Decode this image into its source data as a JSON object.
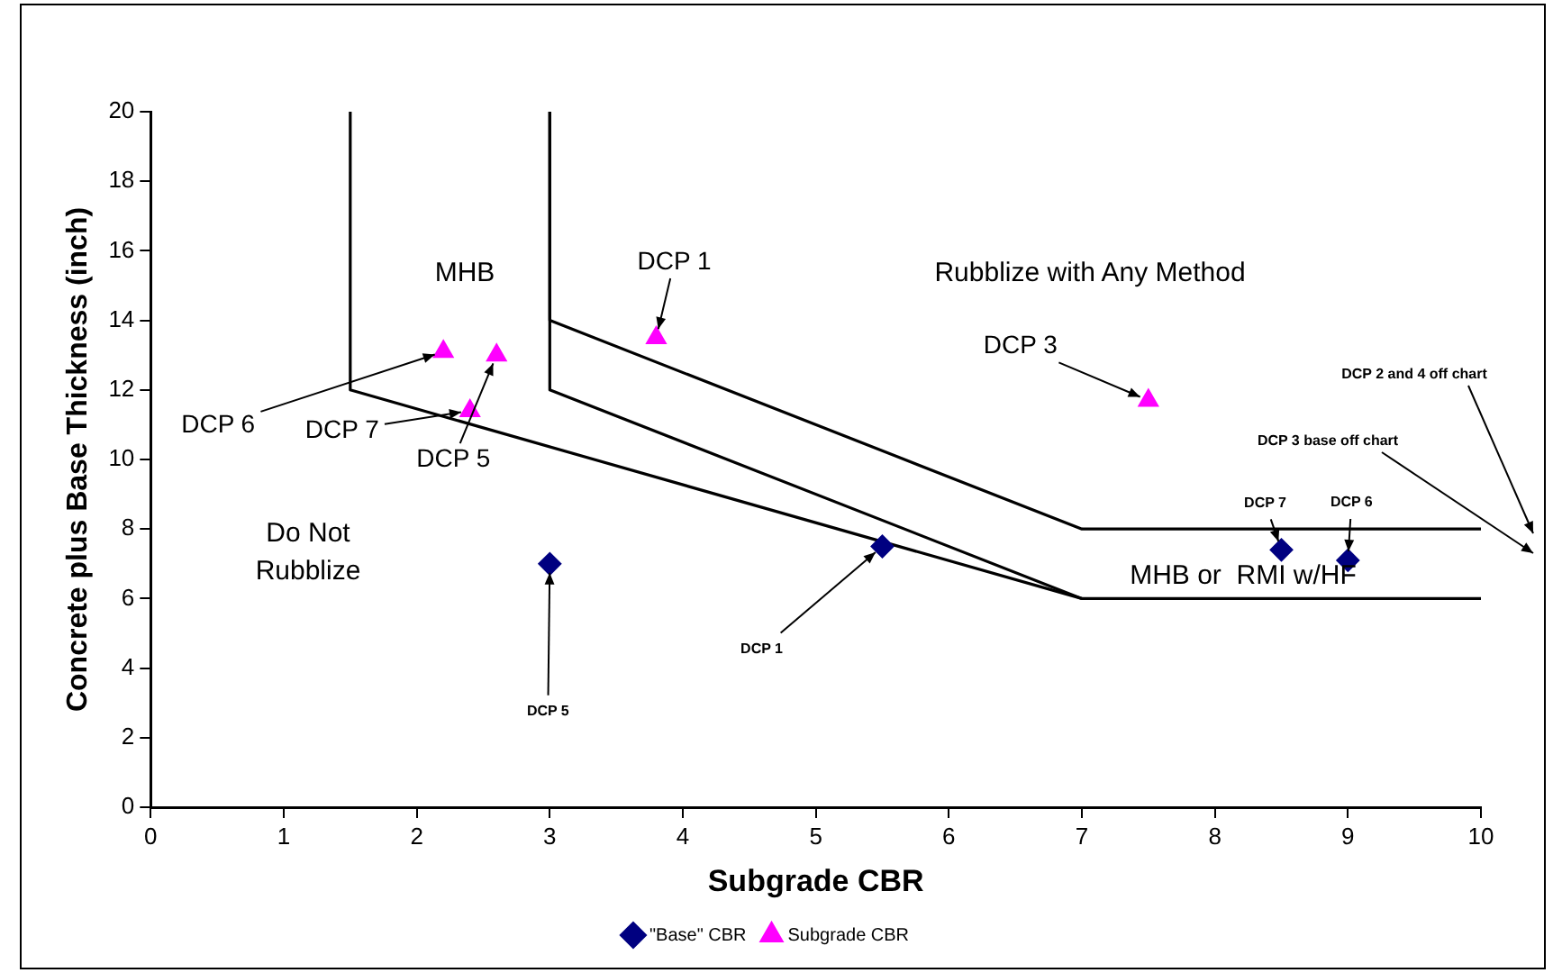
{
  "chart_data": {
    "type": "scatter",
    "xlabel": "Subgrade CBR",
    "ylabel": "Concrete plus Base Thickness (inch)",
    "xlim": [
      0,
      10
    ],
    "xticks": [
      0,
      1,
      2,
      3,
      4,
      5,
      6,
      7,
      8,
      9,
      10
    ],
    "ylim": [
      0,
      20
    ],
    "yticks": [
      0,
      2,
      4,
      6,
      8,
      10,
      12,
      14,
      16,
      18,
      20
    ],
    "grid": false,
    "legend": "bottom",
    "series": [
      {
        "type": "line",
        "color": "#000000",
        "marker": "none",
        "x": [
          1.5,
          1.5,
          7,
          10
        ],
        "values": [
          20,
          12,
          6,
          6
        ]
      },
      {
        "type": "line",
        "color": "#000000",
        "marker": "none",
        "x": [
          3,
          3,
          7
        ],
        "values": [
          20,
          12,
          6
        ]
      },
      {
        "type": "line",
        "color": "#000000",
        "marker": "none",
        "x": [
          3,
          3,
          7,
          10
        ],
        "values": [
          20,
          14,
          8,
          8
        ]
      },
      {
        "name": "\"Base\" CBR",
        "color": "#000080",
        "marker": "diamond",
        "x": [
          3,
          5.5,
          8.5,
          9
        ],
        "values": [
          7,
          7.5,
          7.4,
          7.1
        ]
      },
      {
        "name": "Subgrade CBR",
        "color": "#ff00ff",
        "marker": "triangle",
        "x": [
          2.2,
          2.6,
          2.4,
          3.8,
          7.5
        ],
        "values": [
          13.1,
          13,
          11.4,
          13.5,
          11.7
        ]
      }
    ],
    "annotations": [
      "MHB",
      "Rubblize with Any Method",
      "Do Not\nRubblize",
      "MHB or  RMI w/HF",
      {
        "text": "DCP 1",
        "x": 3.8,
        "y": 13.5
      },
      {
        "text": "DCP 6",
        "x": 2.2,
        "y": 13.1
      },
      {
        "text": "DCP 7",
        "x": 2.4,
        "y": 11.4
      },
      {
        "text": "DCP 5",
        "x": 2.6,
        "y": 13
      },
      {
        "text": "DCP 3",
        "x": 7.5,
        "y": 11.7
      },
      {
        "text": "DCP 5",
        "x": 3,
        "y": 7
      },
      {
        "text": "DCP 1",
        "x": 5.5,
        "y": 7.5
      },
      {
        "text": "DCP 7",
        "x": 8.5,
        "y": 7.4
      },
      {
        "text": "DCP 6",
        "x": 9,
        "y": 7.1
      },
      "DCP 2 and 4 off chart",
      "DCP 3 base off chart"
    ]
  }
}
